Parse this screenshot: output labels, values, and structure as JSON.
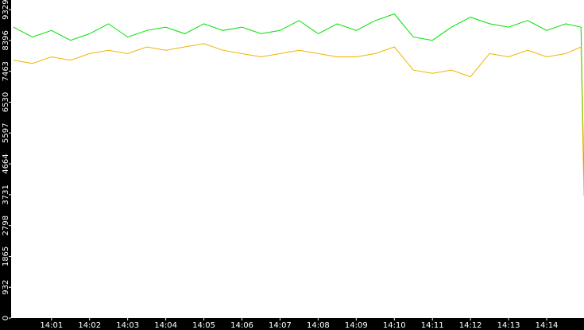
{
  "chart_data": {
    "type": "line",
    "x": [
      0,
      0.5,
      1,
      1.5,
      2,
      2.5,
      3,
      3.5,
      4,
      4.5,
      5,
      5.5,
      6,
      6.5,
      7,
      7.5,
      8,
      8.5,
      9,
      9.5,
      10,
      10.5,
      11,
      11.5,
      12,
      12.5,
      13,
      13.5,
      14,
      14.5,
      14.9,
      14.98
    ],
    "series": [
      {
        "color": "#00e000",
        "values": [
          8800,
          8500,
          8700,
          8400,
          8600,
          8900,
          8500,
          8700,
          8800,
          8600,
          8900,
          8700,
          8800,
          8600,
          8700,
          9000,
          8600,
          8900,
          8700,
          9000,
          9200,
          8500,
          8400,
          8800,
          9100,
          8900,
          8800,
          9000,
          8700,
          8900,
          8800,
          4200
        ]
      },
      {
        "color": "#f0b400",
        "values": [
          7800,
          7700,
          7900,
          7800,
          8000,
          8100,
          8000,
          8200,
          8100,
          8200,
          8300,
          8100,
          8000,
          7900,
          8000,
          8100,
          8000,
          7900,
          7900,
          8000,
          8200,
          7500,
          7400,
          7500,
          7300,
          8000,
          7900,
          8100,
          7900,
          8000,
          8200,
          3700
        ]
      }
    ],
    "xlim": [
      -0.06,
      14.98
    ],
    "xticks": [
      {
        "value": 1,
        "label": "14:01"
      },
      {
        "value": 2,
        "label": "14:02"
      },
      {
        "value": 3,
        "label": "14:03"
      },
      {
        "value": 4,
        "label": "14:04"
      },
      {
        "value": 5,
        "label": "14:05"
      },
      {
        "value": 6,
        "label": "14:06"
      },
      {
        "value": 7,
        "label": "14:07"
      },
      {
        "value": 8,
        "label": "14:08"
      },
      {
        "value": 9,
        "label": "14:09"
      },
      {
        "value": 10,
        "label": "14:10"
      },
      {
        "value": 11,
        "label": "14:11"
      },
      {
        "value": 12,
        "label": "14:12"
      },
      {
        "value": 13,
        "label": "14:13"
      },
      {
        "value": 14,
        "label": "14:14"
      }
    ],
    "ylim": [
      0,
      9620
    ],
    "yticks": [
      0,
      932,
      1865,
      2798,
      3731,
      4664,
      5597,
      6530,
      7463,
      8396,
      9329
    ]
  }
}
